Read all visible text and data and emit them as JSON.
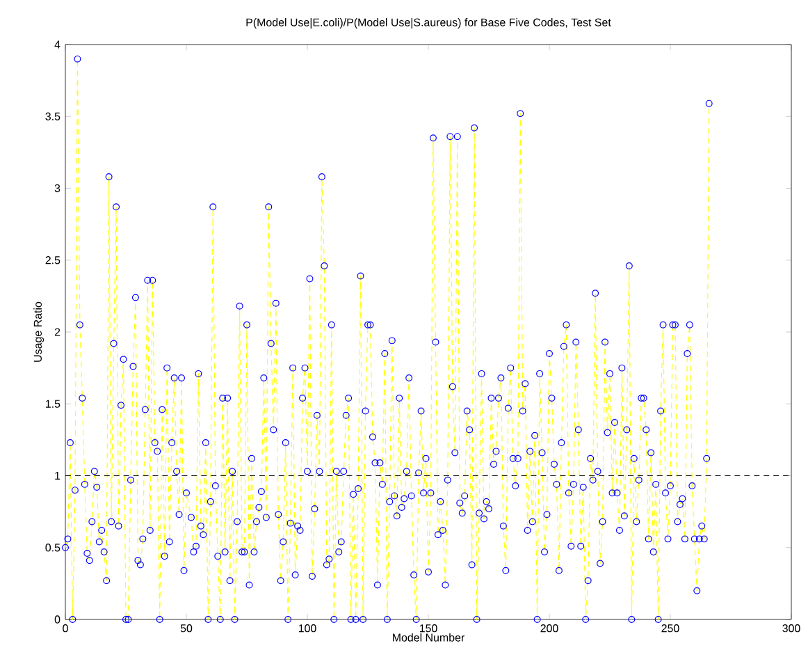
{
  "chart_data": {
    "type": "scatter",
    "title": "P(Model Use|E.coli)/P(Model Use|S.aureus) for Base Five Codes, Test Set",
    "xlabel": "Model Number",
    "ylabel": "Usage Ratio",
    "xlim": [
      0,
      300
    ],
    "ylim": [
      0,
      4
    ],
    "xticks": [
      0,
      50,
      100,
      150,
      200,
      250,
      300
    ],
    "yticks": [
      0,
      0.5,
      1,
      1.5,
      2,
      2.5,
      3,
      3.5,
      4
    ],
    "x": [
      0,
      1,
      2,
      3,
      4,
      5,
      6,
      7,
      8,
      9,
      10,
      11,
      12,
      13,
      14,
      15,
      16,
      17,
      18,
      19,
      20,
      21,
      22,
      23,
      24,
      25,
      26,
      27,
      28,
      29,
      30,
      31,
      32,
      33,
      34,
      35,
      36,
      37,
      38,
      39,
      40,
      41,
      42,
      43,
      44,
      45,
      46,
      47,
      48,
      49,
      50,
      52,
      53,
      54,
      55,
      56,
      57,
      58,
      59,
      60,
      61,
      62,
      63,
      64,
      65,
      66,
      67,
      68,
      69,
      70,
      71,
      72,
      73,
      74,
      75,
      76,
      77,
      78,
      79,
      80,
      81,
      82,
      83,
      84,
      85,
      86,
      87,
      88,
      89,
      90,
      91,
      92,
      93,
      94,
      95,
      96,
      97,
      98,
      99,
      100,
      101,
      102,
      103,
      104,
      105,
      106,
      107,
      108,
      109,
      110,
      111,
      112,
      113,
      114,
      115,
      116,
      117,
      118,
      119,
      120,
      121,
      122,
      123,
      124,
      125,
      126,
      127,
      128,
      129,
      130,
      131,
      132,
      133,
      134,
      135,
      136,
      137,
      138,
      139,
      140,
      141,
      142,
      143,
      144,
      145,
      146,
      147,
      148,
      149,
      150,
      151,
      152,
      153,
      154,
      155,
      156,
      157,
      158,
      159,
      160,
      161,
      162,
      163,
      164,
      165,
      166,
      167,
      168,
      169,
      170,
      171,
      172,
      173,
      174,
      175,
      176,
      177,
      178,
      179,
      180,
      181,
      182,
      183,
      184,
      185,
      186,
      187,
      188,
      189,
      190,
      191,
      192,
      193,
      194,
      195,
      196,
      197,
      198,
      199,
      200,
      201,
      202,
      203,
      204,
      205,
      206,
      207,
      208,
      209,
      210,
      211,
      212,
      213,
      214,
      215,
      216,
      217,
      218,
      219,
      220,
      221,
      222,
      223,
      224,
      225,
      226,
      227,
      228,
      229,
      230,
      231,
      232,
      233,
      234,
      235,
      236,
      237,
      238,
      239,
      240,
      241,
      242,
      243,
      244,
      245,
      246,
      247,
      248,
      249,
      250,
      251,
      252,
      253,
      254,
      255,
      256,
      257,
      258,
      259,
      260,
      261,
      262,
      263,
      264,
      265,
      266
    ],
    "series": [
      {
        "type": "line",
        "color": "#ffff00",
        "line_style": "dashed",
        "marker": "none",
        "values": [
          0.5,
          0.56,
          1.23,
          0,
          0.9,
          3.9,
          2.05,
          1.54,
          0.94,
          0.46,
          0.41,
          0.68,
          1.03,
          0.92,
          0.54,
          0.62,
          0.47,
          0.27,
          3.08,
          0.68,
          1.92,
          2.87,
          0.65,
          1.49,
          1.81,
          0,
          0,
          0.97,
          1.76,
          2.24,
          0.41,
          0.38,
          0.56,
          1.46,
          2.36,
          0.62,
          2.36,
          1.23,
          1.17,
          0,
          1.46,
          0.44,
          1.75,
          0.54,
          1.23,
          1.68,
          1.03,
          0.73,
          1.68,
          0.34,
          0.88,
          0.71,
          0.47,
          0.51,
          1.71,
          0.65,
          0.59,
          1.23,
          0,
          0.82,
          2.87,
          0.93,
          0.44,
          0,
          1.54,
          0.47,
          1.54,
          0.27,
          1.03,
          0,
          0.68,
          2.18,
          0.47,
          0.47,
          2.05,
          0.24,
          1.12,
          0.47,
          0.68,
          0.78,
          0.89,
          1.68,
          0.71,
          2.87,
          1.92,
          1.32,
          2.2,
          0.73,
          0.27,
          0.54,
          1.23,
          0,
          0.67,
          1.75,
          0.31,
          0.65,
          0.62,
          1.54,
          1.75,
          1.03,
          2.37,
          0.3,
          0.77,
          1.42,
          1.03,
          3.08,
          2.46,
          0.38,
          0.42,
          2.05,
          0,
          1.03,
          0.47,
          0.54,
          1.03,
          1.42,
          1.54,
          0,
          0.87,
          0,
          0.91,
          2.39,
          0,
          1.45,
          2.05,
          2.05,
          1.27,
          1.09,
          0.24,
          1.09,
          0.94,
          1.85,
          0,
          0.82,
          1.94,
          0.86,
          0.72,
          1.54,
          0.78,
          0.84,
          1.03,
          1.68,
          0.86,
          0.31,
          0,
          1.02,
          1.45,
          0.88,
          1.12,
          0.33,
          0.88,
          3.35,
          1.93,
          0.59,
          0.82,
          0.62,
          0.24,
          0.97,
          3.36,
          1.62,
          1.16,
          3.36,
          0.81,
          0.74,
          0.86,
          1.45,
          1.32,
          0.38,
          3.42,
          0,
          0.74,
          1.71,
          0.7,
          0.82,
          0.77,
          1.54,
          1.08,
          1.17,
          1.54,
          1.68,
          0.65,
          0.34,
          1.47,
          1.75,
          1.12,
          0.93,
          1.12,
          3.52,
          1.45,
          1.64,
          0.62,
          1.17,
          0.68,
          1.28,
          0,
          1.71,
          1.16,
          0.47,
          0.73,
          1.85,
          1.54,
          1.08,
          0.94,
          0.34,
          1.23,
          1.9,
          2.05,
          0.88,
          0.51,
          0.94,
          1.93,
          1.32,
          0.51,
          0.92,
          0,
          0.27,
          1.12,
          0.97,
          2.27,
          1.03,
          0.39,
          0.68,
          1.93,
          1.3,
          1.71,
          0.88,
          1.37,
          0.88,
          0.62,
          1.75,
          0.72,
          1.32,
          2.46,
          0,
          1.12,
          0.68,
          0.97,
          1.54,
          1.54,
          1.32,
          0.56,
          1.16,
          0.47,
          0.94,
          0,
          1.45,
          2.05,
          0.88,
          0.56,
          0.93,
          2.05,
          2.05,
          0.68,
          0.8,
          0.84,
          0.56,
          1.85,
          2.05,
          0.93,
          0.56,
          0.2,
          0.56,
          0.65,
          0.56,
          1.12,
          3.59
        ]
      },
      {
        "type": "scatter",
        "color": "#0000ff",
        "marker": "circle",
        "values": [
          0.5,
          0.56,
          1.23,
          0,
          0.9,
          3.9,
          2.05,
          1.54,
          0.94,
          0.46,
          0.41,
          0.68,
          1.03,
          0.92,
          0.54,
          0.62,
          0.47,
          0.27,
          3.08,
          0.68,
          1.92,
          2.87,
          0.65,
          1.49,
          1.81,
          0,
          0,
          0.97,
          1.76,
          2.24,
          0.41,
          0.38,
          0.56,
          1.46,
          2.36,
          0.62,
          2.36,
          1.23,
          1.17,
          0,
          1.46,
          0.44,
          1.75,
          0.54,
          1.23,
          1.68,
          1.03,
          0.73,
          1.68,
          0.34,
          0.88,
          0.71,
          0.47,
          0.51,
          1.71,
          0.65,
          0.59,
          1.23,
          0,
          0.82,
          2.87,
          0.93,
          0.44,
          0,
          1.54,
          0.47,
          1.54,
          0.27,
          1.03,
          0,
          0.68,
          2.18,
          0.47,
          0.47,
          2.05,
          0.24,
          1.12,
          0.47,
          0.68,
          0.78,
          0.89,
          1.68,
          0.71,
          2.87,
          1.92,
          1.32,
          2.2,
          0.73,
          0.27,
          0.54,
          1.23,
          0,
          0.67,
          1.75,
          0.31,
          0.65,
          0.62,
          1.54,
          1.75,
          1.03,
          2.37,
          0.3,
          0.77,
          1.42,
          1.03,
          3.08,
          2.46,
          0.38,
          0.42,
          2.05,
          0,
          1.03,
          0.47,
          0.54,
          1.03,
          1.42,
          1.54,
          0,
          0.87,
          0,
          0.91,
          2.39,
          0,
          1.45,
          2.05,
          2.05,
          1.27,
          1.09,
          0.24,
          1.09,
          0.94,
          1.85,
          0,
          0.82,
          1.94,
          0.86,
          0.72,
          1.54,
          0.78,
          0.84,
          1.03,
          1.68,
          0.86,
          0.31,
          0,
          1.02,
          1.45,
          0.88,
          1.12,
          0.33,
          0.88,
          3.35,
          1.93,
          0.59,
          0.82,
          0.62,
          0.24,
          0.97,
          3.36,
          1.62,
          1.16,
          3.36,
          0.81,
          0.74,
          0.86,
          1.45,
          1.32,
          0.38,
          3.42,
          0,
          0.74,
          1.71,
          0.7,
          0.82,
          0.77,
          1.54,
          1.08,
          1.17,
          1.54,
          1.68,
          0.65,
          0.34,
          1.47,
          1.75,
          1.12,
          0.93,
          1.12,
          3.52,
          1.45,
          1.64,
          0.62,
          1.17,
          0.68,
          1.28,
          0,
          1.71,
          1.16,
          0.47,
          0.73,
          1.85,
          1.54,
          1.08,
          0.94,
          0.34,
          1.23,
          1.9,
          2.05,
          0.88,
          0.51,
          0.94,
          1.93,
          1.32,
          0.51,
          0.92,
          0,
          0.27,
          1.12,
          0.97,
          2.27,
          1.03,
          0.39,
          0.68,
          1.93,
          1.3,
          1.71,
          0.88,
          1.37,
          0.88,
          0.62,
          1.75,
          0.72,
          1.32,
          2.46,
          0,
          1.12,
          0.68,
          0.97,
          1.54,
          1.54,
          1.32,
          0.56,
          1.16,
          0.47,
          0.94,
          0,
          1.45,
          2.05,
          0.88,
          0.56,
          0.93,
          2.05,
          2.05,
          0.68,
          0.8,
          0.84,
          0.56,
          1.85,
          2.05,
          0.93,
          0.56,
          0.2,
          0.56,
          0.65,
          0.56,
          1.12,
          3.59
        ]
      }
    ],
    "ref_lines": [
      {
        "axis": "y",
        "value": 1,
        "color": "#000000",
        "line_style": "dashed"
      }
    ]
  }
}
